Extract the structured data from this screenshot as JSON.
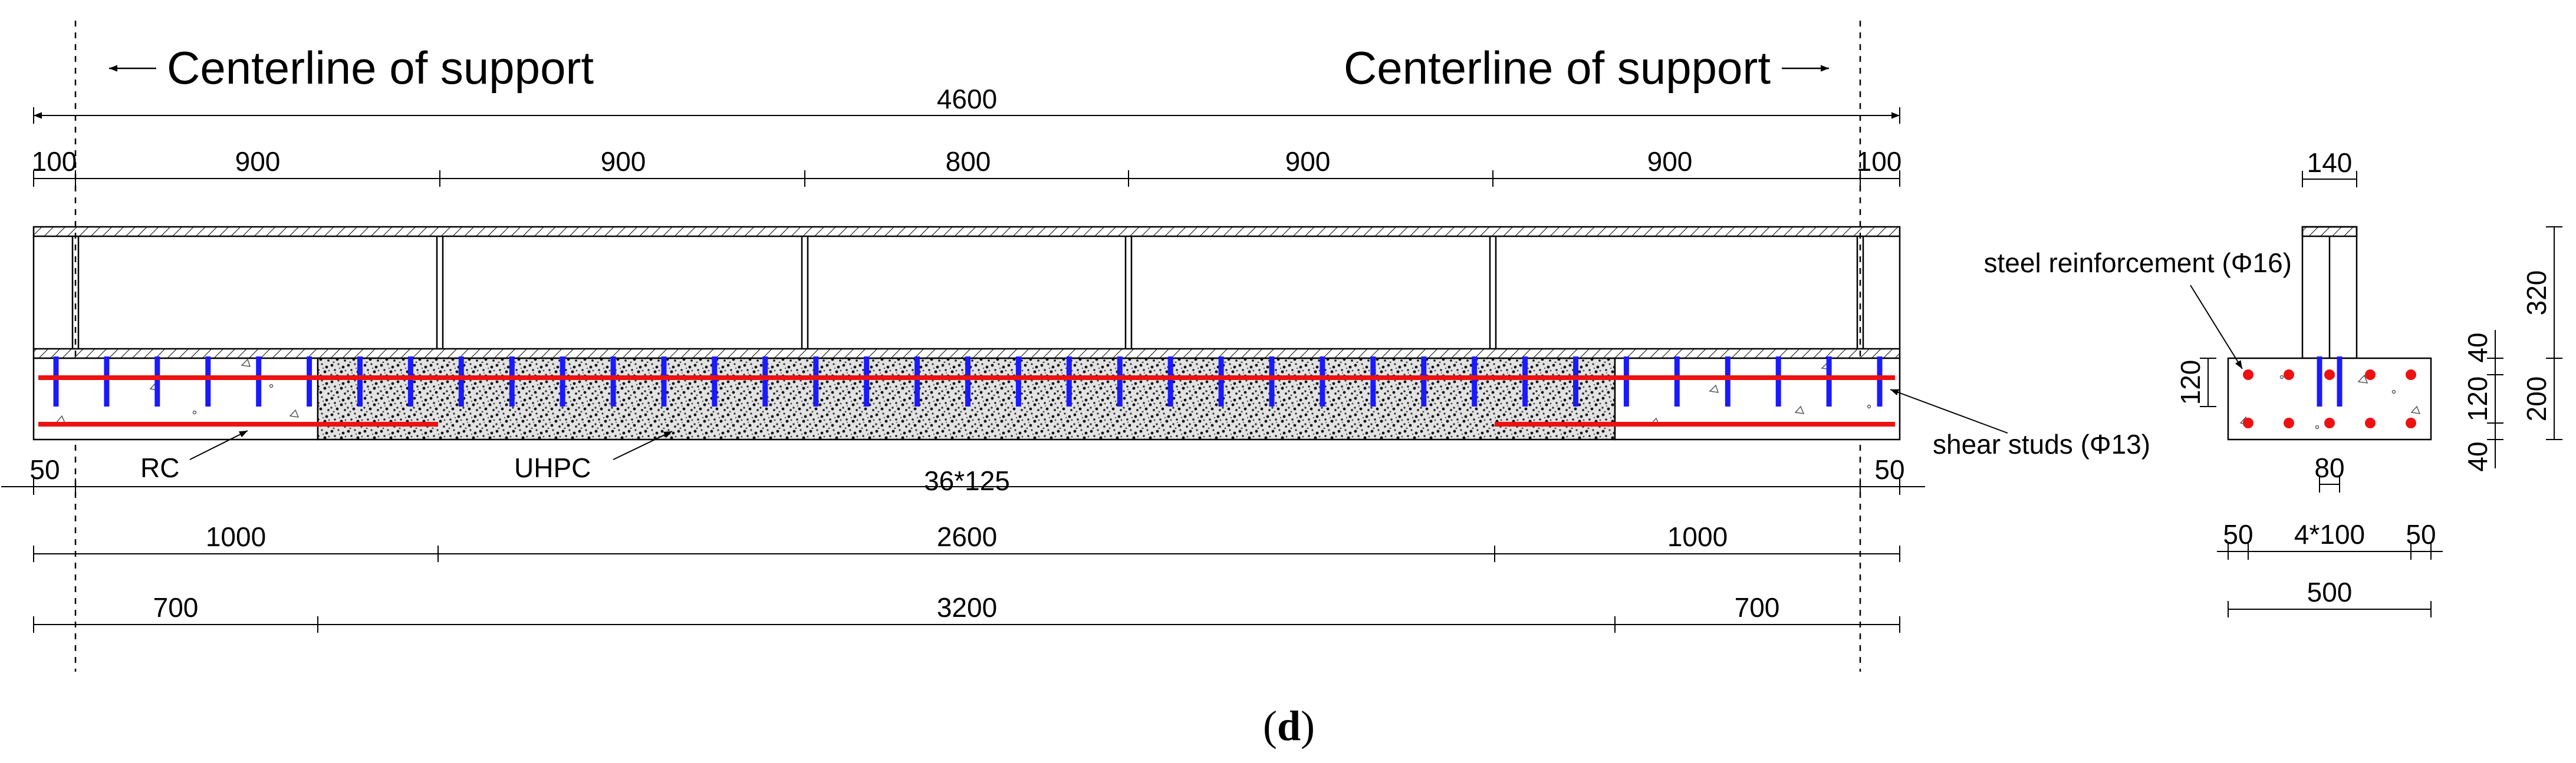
{
  "labels": {
    "support_left": "Centerline of support",
    "support_right": "Centerline of  support",
    "rc": "RC",
    "uhpc": "UHPC",
    "steel_reinforcement": "steel reinforcement (Φ16)",
    "shear_studs": "shear studs (Φ13)",
    "caption_open": "(",
    "caption_letter": "d",
    "caption_close": ")"
  },
  "elevation_dimensions": {
    "total": "4600",
    "end_left": "100",
    "end_right": "100",
    "panels": [
      "900",
      "900",
      "800",
      "900",
      "900"
    ],
    "stud_spacing": "36*125",
    "edge_left": "50",
    "edge_right": "50",
    "zones": [
      "1000",
      "2600",
      "1000"
    ],
    "rebar_zones": [
      "700",
      "3200",
      "700"
    ]
  },
  "section_dimensions": {
    "web_width": "140",
    "web_height": "320",
    "slab_height": "200",
    "layer_top": "40",
    "layer_mid": "120",
    "layer_bottom": "40",
    "stud_height": "120",
    "stud_gap": "80",
    "edge_left": "50",
    "spacing": "4*100",
    "edge_right": "50",
    "total_width": "500"
  },
  "colors": {
    "shear_studs": "#1a1aff",
    "steel_reinforcement": "#ee1111",
    "lines": "#000000"
  }
}
